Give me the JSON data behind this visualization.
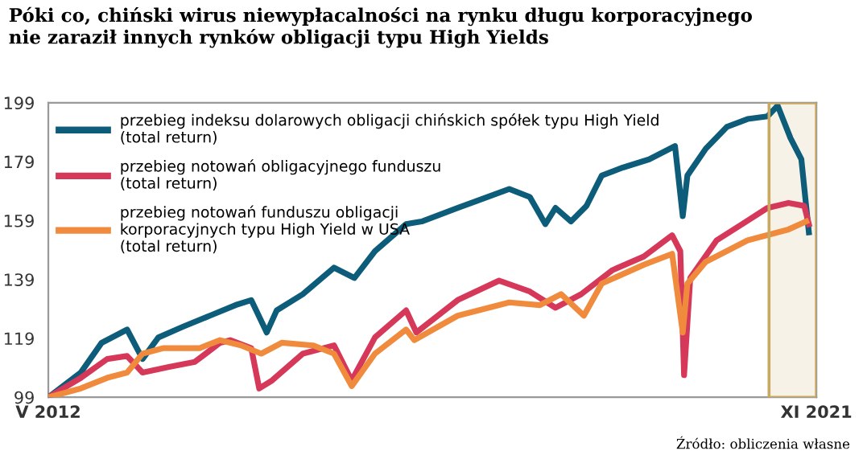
{
  "chart_data": {
    "type": "line",
    "title": "Póki co, chiński wirus niewypłacalności na rynku długu korporacyjnego\nnie zaraził innych rynków obligacji typu High Yields",
    "annotations": [
      "Źródło: obliczenia własne"
    ],
    "xlim": [
      "2012-05-01",
      "2021-11-01"
    ],
    "xticks": [
      {
        "value": "2012-05-01",
        "label": "V 2012"
      },
      {
        "value": "2021-11-01",
        "label": "XI 2021"
      }
    ],
    "ylim": [
      99,
      199
    ],
    "yticks": [
      99,
      119,
      139,
      159,
      179,
      199
    ],
    "grid": false,
    "legend": "top left",
    "marker": "none",
    "line_style": "solid",
    "bands": [
      {
        "axis": "x",
        "from": "2021-04-01",
        "to": "2021-11-01",
        "color": "#c9a860"
      }
    ],
    "series": [
      {
        "name": "przebieg indeksu dolarowych obligacji chińskich spółek typu High Yield\n(total return)",
        "color": "#0d5c7a",
        "x": [
          "2012-05-01",
          "2012-09-25",
          "2012-12-28",
          "2013-04-22",
          "2013-07-01",
          "2013-09-10",
          "2014-01-01",
          "2014-05-01",
          "2014-08-25",
          "2014-11-04",
          "2015-01-13",
          "2015-02-27",
          "2015-06-25",
          "2015-11-13",
          "2016-02-13",
          "2016-05-16",
          "2016-10-04",
          "2016-12-13",
          "2017-05-25",
          "2018-01-13",
          "2018-04-16",
          "2018-06-25",
          "2018-08-10",
          "2018-10-19",
          "2018-12-28",
          "2019-03-07",
          "2019-06-10",
          "2019-10-07",
          "2020-02-01",
          "2020-03-07",
          "2020-03-28",
          "2020-06-19",
          "2020-09-22",
          "2020-12-25",
          "2021-03-25",
          "2021-05-10",
          "2021-07-07",
          "2021-08-25",
          "2021-09-28"
        ],
        "values": [
          99,
          107.4,
          117.5,
          122,
          112,
          119.3,
          123,
          126.7,
          130.3,
          132,
          121,
          128.5,
          134,
          143,
          139.5,
          148.6,
          157.8,
          158.7,
          163.3,
          169.7,
          167,
          157.8,
          163.3,
          158.7,
          164,
          174.3,
          177,
          179.8,
          184.3,
          160.5,
          174.3,
          183.4,
          190.8,
          193.5,
          194.4,
          198,
          187,
          179.8,
          155
        ]
      },
      {
        "name": "przebieg notowań obligacyjnego funduszu\n(total return)",
        "color": "#d6385a",
        "x": [
          "2012-05-01",
          "2012-09-25",
          "2013-01-22",
          "2013-04-22",
          "2013-07-01",
          "2013-10-28",
          "2014-02-22",
          "2014-06-16",
          "2014-08-01",
          "2014-11-04",
          "2014-12-10",
          "2015-02-06",
          "2015-06-25",
          "2015-11-13",
          "2016-02-01",
          "2016-05-16",
          "2016-10-04",
          "2016-11-19",
          "2017-05-25",
          "2017-11-28",
          "2018-04-16",
          "2018-08-10",
          "2018-12-04",
          "2019-04-25",
          "2019-09-13",
          "2020-01-19",
          "2020-02-25",
          "2020-03-13",
          "2020-04-10",
          "2020-08-07",
          "2020-12-01",
          "2021-03-25",
          "2021-06-28",
          "2021-09-07",
          "2021-09-28"
        ],
        "values": [
          99,
          105.6,
          112,
          113,
          107.4,
          109.3,
          111,
          117.5,
          118.4,
          115.7,
          102,
          104.7,
          113.8,
          116.6,
          104.7,
          119.3,
          128.5,
          121,
          132,
          138.6,
          134.9,
          129.4,
          134,
          142.2,
          146.8,
          154,
          148.6,
          106.5,
          139.5,
          152.3,
          157.8,
          163.3,
          165,
          164,
          157.8
        ]
      },
      {
        "name": "przebieg notowań funduszu obligacji\nkorporacyjnych typu High Yield w USA\n(total return)",
        "color": "#f08a3c",
        "x": [
          "2012-05-01",
          "2012-09-25",
          "2013-01-22",
          "2013-04-22",
          "2013-07-01",
          "2013-10-04",
          "2014-03-16",
          "2014-06-16",
          "2014-09-19",
          "2014-12-19",
          "2015-03-22",
          "2015-08-10",
          "2015-11-13",
          "2016-02-01",
          "2016-05-16",
          "2016-10-04",
          "2016-11-10",
          "2017-05-25",
          "2018-01-13",
          "2018-06-01",
          "2018-09-04",
          "2018-12-16",
          "2019-03-07",
          "2019-09-13",
          "2020-01-19",
          "2020-03-07",
          "2020-03-28",
          "2020-06-19",
          "2020-12-25",
          "2021-06-28",
          "2021-09-16"
        ],
        "values": [
          99,
          102,
          105.6,
          107.4,
          113.8,
          115.7,
          115.7,
          118.4,
          116.6,
          113.8,
          117.5,
          116.6,
          113.8,
          102.8,
          113.8,
          122,
          118.4,
          126.7,
          131.2,
          130.3,
          134,
          126.7,
          137.6,
          144,
          147.7,
          121,
          137.6,
          145,
          152.3,
          156,
          158.7
        ]
      }
    ]
  }
}
